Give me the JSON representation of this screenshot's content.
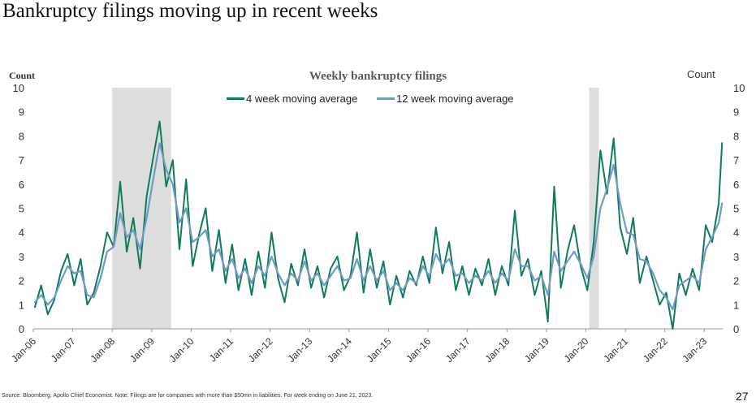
{
  "slide": {
    "title": "Bankruptcy filings moving up in recent weeks",
    "source": "Source: Bloomberg, Apollo Chief Economist. Note: Filings are for companies with more than $50mn in liabilities. For week ending on June 21, 2023.",
    "page_number": "27"
  },
  "chart_data": {
    "type": "line",
    "title": "Weekly bankruptcy filings",
    "ylabel_left": "Count",
    "ylabel_right": "Count",
    "ylim": [
      0,
      10
    ],
    "yticks": [
      0,
      1,
      2,
      3,
      4,
      5,
      6,
      7,
      8,
      9,
      10
    ],
    "xlim": [
      "2006-01-01",
      "2023-06-21"
    ],
    "xtick_labels": [
      "Jan-06",
      "Jan-07",
      "Jan-08",
      "Jan-09",
      "Jan-10",
      "Jan-11",
      "Jan-12",
      "Jan-13",
      "Jan-14",
      "Jan-15",
      "Jan-16",
      "Jan-17",
      "Jan-18",
      "Jan-19",
      "Jan-20",
      "Jan-21",
      "Jan-22",
      "Jan-23"
    ],
    "grid": false,
    "legend": "top-center",
    "recessions": [
      {
        "start": "2008-01-01",
        "end": "2009-06-30"
      },
      {
        "start": "2020-02-01",
        "end": "2020-04-30"
      }
    ],
    "series": [
      {
        "name": "4 week moving average",
        "color": "#127a5c",
        "points": [
          [
            "2006-01",
            0.9
          ],
          [
            "2006-03",
            1.8
          ],
          [
            "2006-05",
            0.6
          ],
          [
            "2006-07",
            1.2
          ],
          [
            "2006-09",
            2.4
          ],
          [
            "2006-11",
            3.1
          ],
          [
            "2007-01",
            1.8
          ],
          [
            "2007-03",
            2.9
          ],
          [
            "2007-05",
            1.0
          ],
          [
            "2007-07",
            1.5
          ],
          [
            "2007-09",
            2.6
          ],
          [
            "2007-11",
            4.0
          ],
          [
            "2008-01",
            3.4
          ],
          [
            "2008-03",
            6.1
          ],
          [
            "2008-05",
            3.2
          ],
          [
            "2008-07",
            4.6
          ],
          [
            "2008-09",
            2.5
          ],
          [
            "2008-11",
            5.5
          ],
          [
            "2009-01",
            7.1
          ],
          [
            "2009-03",
            8.6
          ],
          [
            "2009-05",
            5.9
          ],
          [
            "2009-07",
            7.0
          ],
          [
            "2009-09",
            3.3
          ],
          [
            "2009-11",
            6.2
          ],
          [
            "2010-01",
            2.6
          ],
          [
            "2010-03",
            3.9
          ],
          [
            "2010-05",
            5.0
          ],
          [
            "2010-07",
            2.4
          ],
          [
            "2010-09",
            4.1
          ],
          [
            "2010-11",
            1.9
          ],
          [
            "2011-01",
            3.5
          ],
          [
            "2011-03",
            1.6
          ],
          [
            "2011-05",
            2.9
          ],
          [
            "2011-07",
            1.4
          ],
          [
            "2011-09",
            3.2
          ],
          [
            "2011-11",
            1.7
          ],
          [
            "2012-01",
            4.0
          ],
          [
            "2012-03",
            2.1
          ],
          [
            "2012-05",
            1.1
          ],
          [
            "2012-07",
            2.7
          ],
          [
            "2012-09",
            1.8
          ],
          [
            "2012-11",
            3.3
          ],
          [
            "2013-01",
            1.7
          ],
          [
            "2013-03",
            2.6
          ],
          [
            "2013-05",
            1.3
          ],
          [
            "2013-07",
            2.5
          ],
          [
            "2013-09",
            3.0
          ],
          [
            "2013-11",
            1.6
          ],
          [
            "2014-01",
            2.2
          ],
          [
            "2014-03",
            4.0
          ],
          [
            "2014-05",
            1.5
          ],
          [
            "2014-07",
            3.3
          ],
          [
            "2014-09",
            1.7
          ],
          [
            "2014-11",
            2.8
          ],
          [
            "2015-01",
            1.0
          ],
          [
            "2015-03",
            2.2
          ],
          [
            "2015-05",
            1.3
          ],
          [
            "2015-07",
            2.4
          ],
          [
            "2015-09",
            1.8
          ],
          [
            "2015-11",
            3.0
          ],
          [
            "2016-01",
            1.9
          ],
          [
            "2016-03",
            4.2
          ],
          [
            "2016-05",
            2.3
          ],
          [
            "2016-07",
            3.6
          ],
          [
            "2016-09",
            1.6
          ],
          [
            "2016-11",
            2.6
          ],
          [
            "2017-01",
            1.4
          ],
          [
            "2017-03",
            2.5
          ],
          [
            "2017-05",
            1.8
          ],
          [
            "2017-07",
            2.9
          ],
          [
            "2017-09",
            1.4
          ],
          [
            "2017-11",
            2.6
          ],
          [
            "2018-01",
            1.8
          ],
          [
            "2018-03",
            4.9
          ],
          [
            "2018-05",
            2.2
          ],
          [
            "2018-07",
            2.9
          ],
          [
            "2018-09",
            1.4
          ],
          [
            "2018-11",
            2.4
          ],
          [
            "2019-01",
            0.3
          ],
          [
            "2019-03",
            5.9
          ],
          [
            "2019-05",
            1.7
          ],
          [
            "2019-07",
            3.2
          ],
          [
            "2019-09",
            4.3
          ],
          [
            "2019-11",
            2.6
          ],
          [
            "2020-01",
            1.6
          ],
          [
            "2020-03",
            3.6
          ],
          [
            "2020-05",
            7.4
          ],
          [
            "2020-07",
            5.6
          ],
          [
            "2020-09",
            7.9
          ],
          [
            "2020-11",
            4.2
          ],
          [
            "2021-01",
            3.1
          ],
          [
            "2021-03",
            4.6
          ],
          [
            "2021-05",
            1.9
          ],
          [
            "2021-07",
            3.0
          ],
          [
            "2021-09",
            2.0
          ],
          [
            "2021-11",
            1.0
          ],
          [
            "2022-01",
            1.5
          ],
          [
            "2022-03",
            0.0
          ],
          [
            "2022-05",
            2.3
          ],
          [
            "2022-07",
            1.4
          ],
          [
            "2022-09",
            2.5
          ],
          [
            "2022-11",
            1.6
          ],
          [
            "2023-01",
            4.3
          ],
          [
            "2023-03",
            3.6
          ],
          [
            "2023-05",
            5.2
          ],
          [
            "2023-06",
            7.7
          ]
        ]
      },
      {
        "name": "12 week moving average",
        "color": "#6f9bc6",
        "points": [
          [
            "2006-01",
            1.1
          ],
          [
            "2006-03",
            1.4
          ],
          [
            "2006-05",
            1.0
          ],
          [
            "2006-07",
            1.3
          ],
          [
            "2006-09",
            2.0
          ],
          [
            "2006-11",
            2.6
          ],
          [
            "2007-01",
            2.3
          ],
          [
            "2007-03",
            2.4
          ],
          [
            "2007-05",
            1.4
          ],
          [
            "2007-07",
            1.3
          ],
          [
            "2007-09",
            2.1
          ],
          [
            "2007-11",
            3.2
          ],
          [
            "2008-01",
            3.4
          ],
          [
            "2008-03",
            4.8
          ],
          [
            "2008-05",
            3.8
          ],
          [
            "2008-07",
            4.1
          ],
          [
            "2008-09",
            3.3
          ],
          [
            "2008-11",
            4.6
          ],
          [
            "2009-01",
            6.2
          ],
          [
            "2009-03",
            7.7
          ],
          [
            "2009-05",
            6.6
          ],
          [
            "2009-07",
            6.0
          ],
          [
            "2009-09",
            4.4
          ],
          [
            "2009-11",
            5.0
          ],
          [
            "2010-01",
            3.6
          ],
          [
            "2010-03",
            3.8
          ],
          [
            "2010-05",
            4.1
          ],
          [
            "2010-07",
            3.0
          ],
          [
            "2010-09",
            3.3
          ],
          [
            "2010-11",
            2.4
          ],
          [
            "2011-01",
            2.9
          ],
          [
            "2011-03",
            2.1
          ],
          [
            "2011-05",
            2.5
          ],
          [
            "2011-07",
            1.9
          ],
          [
            "2011-09",
            2.6
          ],
          [
            "2011-11",
            2.2
          ],
          [
            "2012-01",
            3.0
          ],
          [
            "2012-03",
            2.3
          ],
          [
            "2012-05",
            1.8
          ],
          [
            "2012-07",
            2.3
          ],
          [
            "2012-09",
            2.0
          ],
          [
            "2012-11",
            2.8
          ],
          [
            "2013-01",
            2.0
          ],
          [
            "2013-03",
            2.3
          ],
          [
            "2013-05",
            1.8
          ],
          [
            "2013-07",
            2.2
          ],
          [
            "2013-09",
            2.6
          ],
          [
            "2013-11",
            2.0
          ],
          [
            "2014-01",
            2.1
          ],
          [
            "2014-03",
            2.9
          ],
          [
            "2014-05",
            2.0
          ],
          [
            "2014-07",
            2.6
          ],
          [
            "2014-09",
            2.0
          ],
          [
            "2014-11",
            2.4
          ],
          [
            "2015-01",
            1.6
          ],
          [
            "2015-03",
            1.9
          ],
          [
            "2015-05",
            1.6
          ],
          [
            "2015-07",
            2.1
          ],
          [
            "2015-09",
            1.9
          ],
          [
            "2015-11",
            2.6
          ],
          [
            "2016-01",
            2.2
          ],
          [
            "2016-03",
            3.1
          ],
          [
            "2016-05",
            2.6
          ],
          [
            "2016-07",
            2.9
          ],
          [
            "2016-09",
            2.2
          ],
          [
            "2016-11",
            2.3
          ],
          [
            "2017-01",
            1.9
          ],
          [
            "2017-03",
            2.2
          ],
          [
            "2017-05",
            2.0
          ],
          [
            "2017-07",
            2.4
          ],
          [
            "2017-09",
            1.9
          ],
          [
            "2017-11",
            2.3
          ],
          [
            "2018-01",
            2.0
          ],
          [
            "2018-03",
            3.3
          ],
          [
            "2018-05",
            2.6
          ],
          [
            "2018-07",
            2.6
          ],
          [
            "2018-09",
            2.0
          ],
          [
            "2018-11",
            2.2
          ],
          [
            "2019-01",
            1.4
          ],
          [
            "2019-03",
            3.2
          ],
          [
            "2019-05",
            2.4
          ],
          [
            "2019-07",
            2.8
          ],
          [
            "2019-09",
            3.2
          ],
          [
            "2019-11",
            2.7
          ],
          [
            "2020-01",
            2.1
          ],
          [
            "2020-03",
            3.0
          ],
          [
            "2020-05",
            5.0
          ],
          [
            "2020-07",
            5.8
          ],
          [
            "2020-09",
            6.8
          ],
          [
            "2020-11",
            5.2
          ],
          [
            "2021-01",
            4.0
          ],
          [
            "2021-03",
            3.9
          ],
          [
            "2021-05",
            2.9
          ],
          [
            "2021-07",
            2.8
          ],
          [
            "2021-09",
            2.3
          ],
          [
            "2021-11",
            1.6
          ],
          [
            "2022-01",
            1.3
          ],
          [
            "2022-03",
            0.8
          ],
          [
            "2022-05",
            1.8
          ],
          [
            "2022-07",
            2.0
          ],
          [
            "2022-09",
            2.2
          ],
          [
            "2022-11",
            1.9
          ],
          [
            "2023-01",
            3.3
          ],
          [
            "2023-03",
            3.8
          ],
          [
            "2023-05",
            4.4
          ],
          [
            "2023-06",
            5.2
          ]
        ]
      }
    ]
  }
}
